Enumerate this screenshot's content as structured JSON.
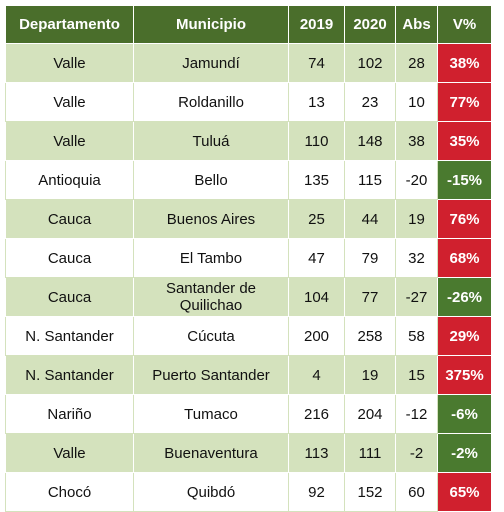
{
  "table": {
    "headers": [
      "Departamento",
      "Municipio",
      "2019",
      "2020",
      "Abs",
      "V%"
    ],
    "rows": [
      {
        "departamento": "Valle",
        "municipio": "Jamundí",
        "y2019": "74",
        "y2020": "102",
        "abs": "28",
        "pct": "38%",
        "trend": "up"
      },
      {
        "departamento": "Valle",
        "municipio": "Roldanillo",
        "y2019": "13",
        "y2020": "23",
        "abs": "10",
        "pct": "77%",
        "trend": "up"
      },
      {
        "departamento": "Valle",
        "municipio": "Tuluá",
        "y2019": "110",
        "y2020": "148",
        "abs": "38",
        "pct": "35%",
        "trend": "up"
      },
      {
        "departamento": "Antioquia",
        "municipio": "Bello",
        "y2019": "135",
        "y2020": "115",
        "abs": "-20",
        "pct": "-15%",
        "trend": "down"
      },
      {
        "departamento": "Cauca",
        "municipio": "Buenos Aires",
        "y2019": "25",
        "y2020": "44",
        "abs": "19",
        "pct": "76%",
        "trend": "up"
      },
      {
        "departamento": "Cauca",
        "municipio": "El Tambo",
        "y2019": "47",
        "y2020": "79",
        "abs": "32",
        "pct": "68%",
        "trend": "up"
      },
      {
        "departamento": "Cauca",
        "municipio": "Santander de Quilichao",
        "y2019": "104",
        "y2020": "77",
        "abs": "-27",
        "pct": "-26%",
        "trend": "down"
      },
      {
        "departamento": "N. Santander",
        "municipio": "Cúcuta",
        "y2019": "200",
        "y2020": "258",
        "abs": "58",
        "pct": "29%",
        "trend": "up"
      },
      {
        "departamento": "N. Santander",
        "municipio": "Puerto Santander",
        "y2019": "4",
        "y2020": "19",
        "abs": "15",
        "pct": "375%",
        "trend": "up"
      },
      {
        "departamento": "Nariño",
        "municipio": "Tumaco",
        "y2019": "216",
        "y2020": "204",
        "abs": "-12",
        "pct": "-6%",
        "trend": "down"
      },
      {
        "departamento": "Valle",
        "municipio": "Buenaventura",
        "y2019": "113",
        "y2020": "111",
        "abs": "-2",
        "pct": "-2%",
        "trend": "down"
      },
      {
        "departamento": "Chocó",
        "municipio": "Quibdó",
        "y2019": "92",
        "y2020": "152",
        "abs": "60",
        "pct": "65%",
        "trend": "up"
      }
    ]
  },
  "colors": {
    "header_bg": "#4a6e2b",
    "band_bg": "#d4e2bd",
    "increase_bg": "#d0202e",
    "decrease_bg": "#4a7a2f"
  }
}
